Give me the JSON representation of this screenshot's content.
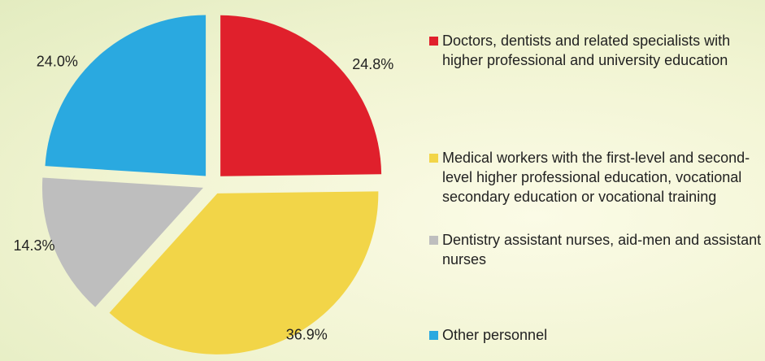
{
  "chart_data": {
    "type": "pie",
    "categories": [
      "Doctors, dentists and related specialists with higher professional and university education",
      "Medical workers with the first-level and second-level higher professional education, vocational secondary education or vocational training",
      "Dentistry assistant nurses, aid-men and assistant nurses",
      "Other personnel"
    ],
    "values": [
      24.8,
      36.9,
      14.3,
      24.0
    ],
    "value_labels": [
      "24.8%",
      "36.9%",
      "14.3%",
      "24.0%"
    ],
    "colors": [
      "#e0202c",
      "#f2d548",
      "#bebebe",
      "#2aa9e0"
    ],
    "legend": "right"
  }
}
